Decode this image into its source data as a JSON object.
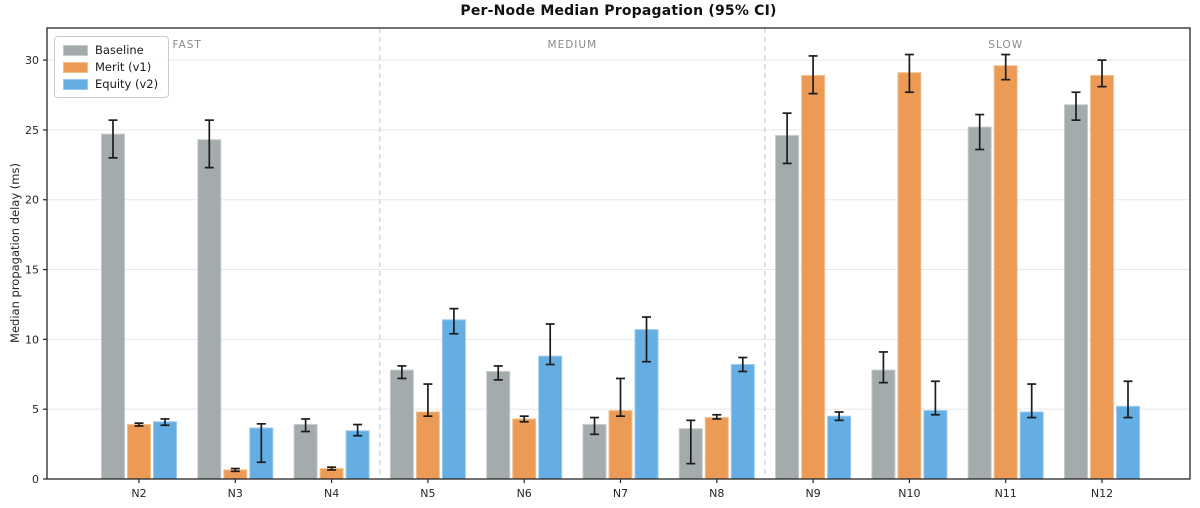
{
  "figure": {
    "background": "#ffffff"
  },
  "chart_data": {
    "type": "bar",
    "title": "Per-Node Median Propagation (95% CI)",
    "xlabel": "",
    "ylabel": "Median propagation delay (ms)",
    "ylim": [
      0,
      32.3
    ],
    "yticks": [
      0,
      5,
      10,
      15,
      20,
      25,
      30
    ],
    "grid": "horizontal",
    "legend_position": "upper-left",
    "error_bars": "95% CI (black, capped, asymmetric)",
    "categories": [
      "N2",
      "N3",
      "N4",
      "N5",
      "N6",
      "N7",
      "N8",
      "N9",
      "N10",
      "N11",
      "N12"
    ],
    "sections": [
      {
        "label": "FAST",
        "from": "N2",
        "to": "N4",
        "label_x_index": 0.5
      },
      {
        "label": "MEDIUM",
        "from": "N5",
        "to": "N8",
        "label_x_index": 4.5
      },
      {
        "label": "SLOW",
        "from": "N9",
        "to": "N12",
        "label_x_index": 9.0
      }
    ],
    "separators_x_index": [
      2.5,
      6.5
    ],
    "series": [
      {
        "name": "Baseline",
        "color": "#a3abac",
        "edge_color": "#c4cacb",
        "values": [
          24.7,
          24.3,
          3.9,
          7.8,
          7.7,
          3.9,
          3.6,
          24.6,
          7.8,
          25.2,
          26.8
        ],
        "ci_low": [
          23.0,
          22.3,
          3.4,
          7.2,
          7.1,
          3.2,
          1.1,
          22.6,
          6.9,
          23.6,
          25.7
        ],
        "ci_high": [
          25.7,
          25.7,
          4.3,
          8.1,
          8.1,
          4.4,
          4.2,
          26.2,
          9.1,
          26.1,
          27.7
        ]
      },
      {
        "name": "Merit (v1)",
        "color": "#ec9b57",
        "edge_color": "#f4c08c",
        "values": [
          3.9,
          0.65,
          0.75,
          4.8,
          4.3,
          4.9,
          4.4,
          28.9,
          29.1,
          29.6,
          28.9
        ],
        "ci_low": [
          3.8,
          0.55,
          0.65,
          4.5,
          4.1,
          4.5,
          4.3,
          27.6,
          27.7,
          28.6,
          28.1
        ],
        "ci_high": [
          4.0,
          0.75,
          0.85,
          6.8,
          4.5,
          7.2,
          4.6,
          30.3,
          30.4,
          30.4,
          30.0
        ]
      },
      {
        "name": "Equity (v2)",
        "color": "#64aee3",
        "edge_color": "#9bc9ee",
        "values": [
          4.1,
          3.65,
          3.45,
          11.4,
          8.8,
          10.7,
          8.2,
          4.5,
          4.9,
          4.8,
          5.2
        ],
        "ci_low": [
          3.85,
          1.2,
          3.1,
          10.4,
          8.2,
          8.4,
          7.7,
          4.2,
          4.6,
          4.4,
          4.4
        ],
        "ci_high": [
          4.3,
          3.95,
          3.9,
          12.2,
          11.1,
          11.6,
          8.7,
          4.8,
          7.0,
          6.8,
          7.0
        ]
      }
    ],
    "colors": {
      "grid": "#e8e8e8",
      "spine": "#262626",
      "separator": "#cccccc",
      "error_bar": "#1c1c1c",
      "tick_label": "#262626",
      "section_label": "#8a8a8a"
    }
  }
}
